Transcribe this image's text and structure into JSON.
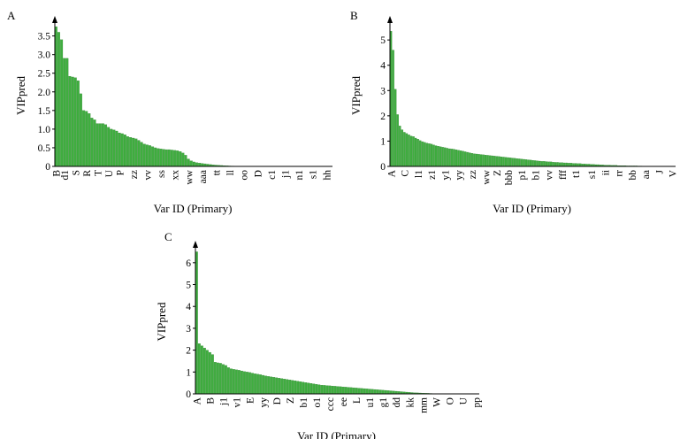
{
  "colors": {
    "bar_fill": "#3fae3f",
    "bar_edge": "#2c7e2c",
    "axis": "#000000",
    "background": "#ffffff"
  },
  "chart_data": [
    {
      "panel": "A",
      "type": "bar",
      "xlabel": "Var ID (Primary)",
      "ylabel": "VIPpred",
      "ylim": [
        0,
        3.8
      ],
      "yticks": [
        0,
        0.5,
        1.0,
        1.5,
        2.0,
        2.5,
        3.0,
        3.5
      ],
      "ytick_labels": [
        "0",
        "0.5",
        "1.0",
        "1.5",
        "2.0",
        "2.5",
        "3.0",
        "3.5"
      ],
      "x_tick_labels": [
        "B",
        "d1",
        "S",
        "R",
        "T",
        "U",
        "P",
        "zz",
        "vv",
        "ss",
        "xx",
        "ww",
        "aaa",
        "tt",
        "ll",
        "oo",
        "D",
        "c1",
        "j1",
        "n1",
        "s1",
        "hh"
      ],
      "x_tick_positions": [
        0,
        3,
        7,
        11,
        15,
        19,
        23,
        28,
        33,
        38,
        43,
        48,
        53,
        58,
        63,
        68,
        73,
        78,
        83,
        88,
        93,
        98
      ],
      "grid": false,
      "values": [
        3.75,
        3.6,
        3.4,
        2.9,
        2.9,
        2.42,
        2.4,
        2.38,
        2.3,
        1.95,
        1.5,
        1.48,
        1.42,
        1.3,
        1.25,
        1.15,
        1.15,
        1.15,
        1.12,
        1.05,
        1.0,
        0.98,
        0.95,
        0.9,
        0.88,
        0.85,
        0.8,
        0.78,
        0.76,
        0.74,
        0.7,
        0.65,
        0.6,
        0.58,
        0.56,
        0.53,
        0.5,
        0.48,
        0.47,
        0.46,
        0.45,
        0.45,
        0.44,
        0.43,
        0.42,
        0.4,
        0.36,
        0.3,
        0.2,
        0.15,
        0.12,
        0.1,
        0.09,
        0.08,
        0.07,
        0.06,
        0.05,
        0.04,
        0.035,
        0.03,
        0.025,
        0.02,
        0.015,
        0.012,
        0.01,
        0.008,
        0.006,
        0.005,
        0.004,
        0.003,
        0.002,
        0.002,
        0.001,
        0.001,
        0,
        0,
        0,
        0,
        0,
        0,
        0,
        0,
        0,
        0,
        0,
        0,
        0,
        0,
        0,
        0,
        0,
        0,
        0,
        0,
        0,
        0,
        0,
        0,
        0,
        0
      ]
    },
    {
      "panel": "B",
      "type": "bar",
      "xlabel": "Var ID (Primary)",
      "ylabel": "VIPpred",
      "ylim": [
        0,
        5.6
      ],
      "yticks": [
        0,
        1,
        2,
        3,
        4,
        5
      ],
      "ytick_labels": [
        "0",
        "1",
        "2",
        "3",
        "4",
        "5"
      ],
      "x_tick_labels": [
        "A",
        "C",
        "l1",
        "z1",
        "y1",
        "yy",
        "zz",
        "ww",
        "Z",
        "bbb",
        "p1",
        "b1",
        "vv",
        "fff",
        "t1",
        "s1",
        "ii",
        "rr",
        "bb",
        "aa",
        "J",
        "V"
      ],
      "x_tick_positions": [
        0,
        6,
        12,
        18,
        24,
        30,
        36,
        42,
        47,
        52,
        58,
        64,
        70,
        76,
        82,
        89,
        95,
        101,
        107,
        113,
        119,
        125
      ],
      "grid": false,
      "values": [
        5.35,
        4.6,
        3.05,
        2.05,
        1.6,
        1.45,
        1.35,
        1.3,
        1.25,
        1.2,
        1.18,
        1.12,
        1.08,
        1.02,
        0.98,
        0.95,
        0.92,
        0.9,
        0.88,
        0.85,
        0.82,
        0.8,
        0.78,
        0.76,
        0.74,
        0.72,
        0.7,
        0.69,
        0.68,
        0.66,
        0.64,
        0.62,
        0.6,
        0.58,
        0.56,
        0.54,
        0.52,
        0.5,
        0.49,
        0.48,
        0.47,
        0.46,
        0.45,
        0.44,
        0.43,
        0.42,
        0.41,
        0.4,
        0.39,
        0.38,
        0.37,
        0.36,
        0.35,
        0.34,
        0.33,
        0.32,
        0.31,
        0.3,
        0.29,
        0.28,
        0.27,
        0.26,
        0.25,
        0.24,
        0.23,
        0.22,
        0.21,
        0.2,
        0.2,
        0.19,
        0.18,
        0.18,
        0.17,
        0.16,
        0.16,
        0.15,
        0.15,
        0.14,
        0.14,
        0.13,
        0.13,
        0.12,
        0.12,
        0.11,
        0.11,
        0.1,
        0.1,
        0.09,
        0.09,
        0.08,
        0.08,
        0.07,
        0.07,
        0.06,
        0.06,
        0.05,
        0.05,
        0.05,
        0.04,
        0.04,
        0.04,
        0.03,
        0.03,
        0.03,
        0.03,
        0.02,
        0.02,
        0.02,
        0.02,
        0.02,
        0.015,
        0.015,
        0.01,
        0.01,
        0.01,
        0.01,
        0.008,
        0.006,
        0.005,
        0.004,
        0.003,
        0.002,
        0.001,
        0.001,
        0,
        0
      ]
    },
    {
      "panel": "C",
      "type": "bar",
      "xlabel": "Var ID (Primary)",
      "ylabel": "VIPpred",
      "ylim": [
        0,
        6.6
      ],
      "yticks": [
        0,
        1,
        2,
        3,
        4,
        5,
        6
      ],
      "ytick_labels": [
        "0",
        "1",
        "2",
        "3",
        "4",
        "5",
        "6"
      ],
      "x_tick_labels": [
        "A",
        "B",
        "j1",
        "v1",
        "E",
        "yy",
        "D",
        "Z",
        "b1",
        "o1",
        "ccc",
        "ee",
        "L",
        "u1",
        "g1",
        "dd",
        "kk",
        "mm",
        "W",
        "O",
        "U",
        "pp"
      ],
      "x_tick_positions": [
        0,
        5,
        10,
        15,
        20,
        25,
        30,
        35,
        40,
        45,
        50,
        55,
        60,
        65,
        70,
        75,
        80,
        85,
        90,
        95,
        100,
        105
      ],
      "grid": false,
      "values": [
        6.5,
        2.3,
        2.2,
        2.1,
        2.0,
        1.9,
        1.8,
        1.45,
        1.42,
        1.4,
        1.35,
        1.3,
        1.2,
        1.15,
        1.12,
        1.1,
        1.08,
        1.05,
        1.02,
        1.0,
        0.98,
        0.95,
        0.92,
        0.9,
        0.88,
        0.85,
        0.82,
        0.8,
        0.78,
        0.76,
        0.74,
        0.72,
        0.7,
        0.68,
        0.66,
        0.64,
        0.62,
        0.6,
        0.58,
        0.56,
        0.54,
        0.52,
        0.5,
        0.48,
        0.46,
        0.44,
        0.42,
        0.4,
        0.39,
        0.38,
        0.37,
        0.36,
        0.35,
        0.34,
        0.33,
        0.32,
        0.31,
        0.3,
        0.29,
        0.28,
        0.27,
        0.26,
        0.25,
        0.24,
        0.23,
        0.22,
        0.21,
        0.2,
        0.19,
        0.18,
        0.17,
        0.16,
        0.15,
        0.14,
        0.13,
        0.12,
        0.11,
        0.1,
        0.09,
        0.08,
        0.07,
        0.06,
        0.05,
        0.045,
        0.04,
        0.035,
        0.03,
        0.025,
        0.02,
        0.015,
        0.012,
        0.01,
        0.008,
        0.006,
        0.005,
        0.004,
        0.003,
        0.002,
        0.001,
        0.001,
        0,
        0,
        0,
        0,
        0,
        0
      ]
    }
  ]
}
